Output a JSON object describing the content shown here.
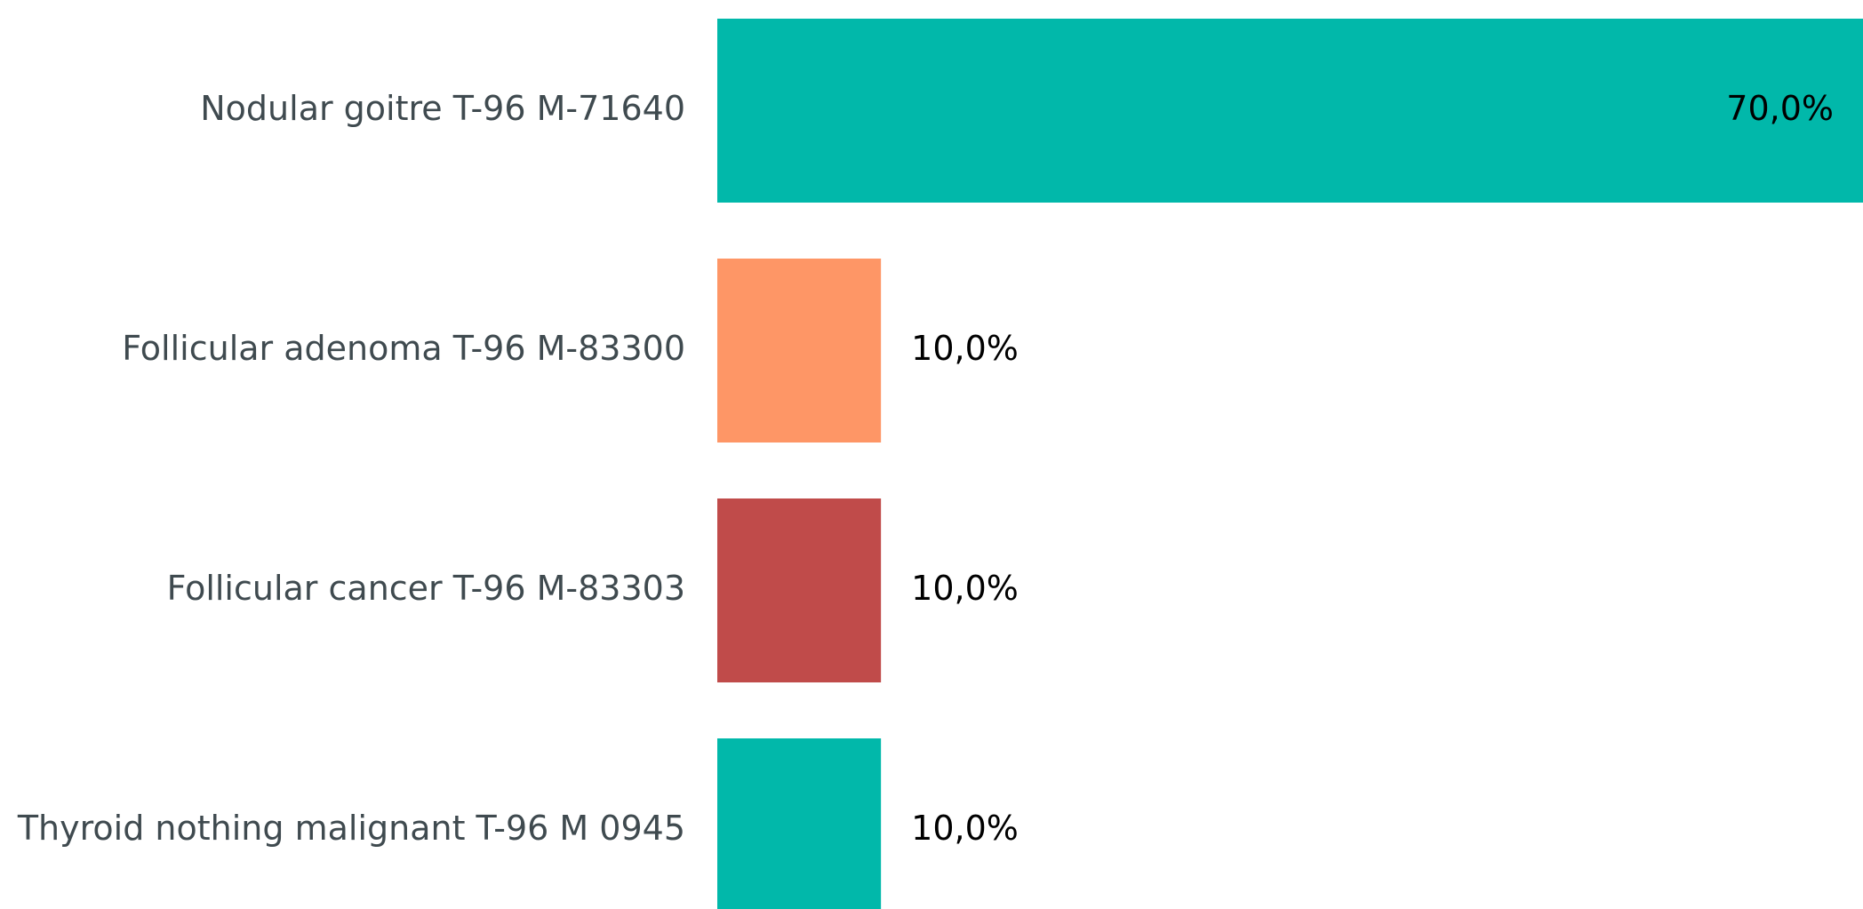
{
  "chart_data": {
    "type": "barh",
    "categories": [
      "Nodular goitre T-96 M-71640",
      "Follicular adenoma T-96 M-83300",
      "Follicular cancer T-96 M-83303",
      "Thyroid nothing malignant T-96 M 0945"
    ],
    "values": [
      70,
      10,
      10,
      10
    ],
    "value_labels": [
      "70,0%",
      "10,0%",
      "10,0%",
      "10,0%"
    ],
    "colors": [
      "#01b8aa",
      "#fe9666",
      "#c04b4a",
      "#01b8aa"
    ],
    "xlim": [
      0,
      70
    ]
  }
}
